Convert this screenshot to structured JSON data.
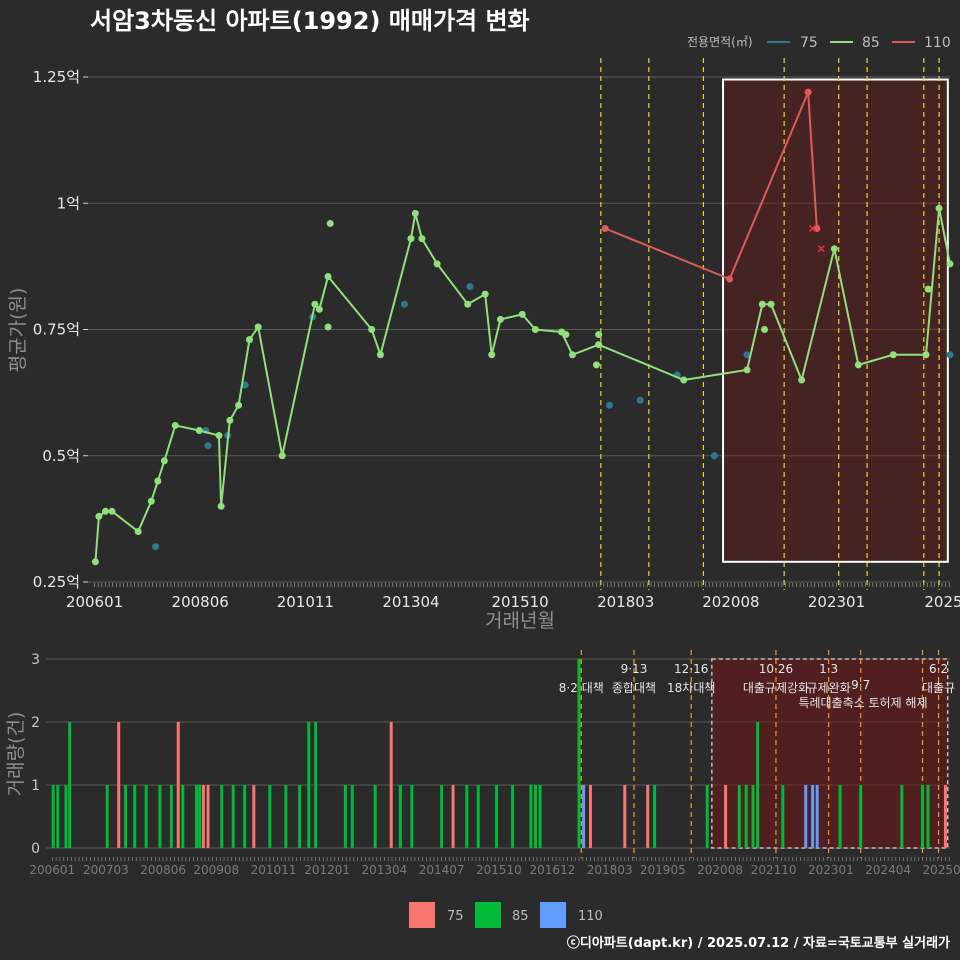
{
  "title": "서암3차동신 아파트(1992) 매매가격 변화",
  "footer": "ⓒ디아파트(dapt.kr) / 2025.07.12 / 자료=국토교통부 실거래가",
  "colors": {
    "s75": "#2a7b8c",
    "s85": "#90e07c",
    "s110": "#e05a5a",
    "b75": "#f8766d",
    "b85": "#00ba38",
    "b110": "#619cff",
    "vline": "#e8d82a",
    "vline2": "#e8a020"
  },
  "chart_data": [
    {
      "type": "line",
      "title": "서암3차동신 아파트(1992) 매매가격 변화",
      "xlabel": "거래년월",
      "ylabel": "평균가(원)",
      "legend_title": "전용면적(㎡)",
      "legend": [
        "75",
        "85",
        "110"
      ],
      "x_ticks": [
        "200601",
        "200806",
        "201011",
        "201304",
        "201510",
        "201803",
        "202008",
        "202301",
        "2025"
      ],
      "y_ticks": [
        "0.25억",
        "0.5억",
        "0.75억",
        "1억",
        "1.25억"
      ],
      "ylim": [
        0.25,
        1.25
      ],
      "xlim": [
        2005.85,
        2025.6
      ],
      "highlight_x": [
        2020.4,
        2025.55
      ],
      "highlight_y": [
        0.29,
        1.245
      ],
      "vlines": [
        2017.6,
        2018.7,
        2019.95,
        2021.8,
        2023.05,
        2023.7,
        2025.0,
        2025.35
      ],
      "series": [
        {
          "name": "75",
          "points": [
            [
              2007.4,
              0.32
            ],
            [
              2008.55,
              0.55
            ],
            [
              2008.6,
              0.52
            ],
            [
              2009.05,
              0.54
            ],
            [
              2009.45,
              0.64
            ],
            [
              2011.0,
              0.775
            ],
            [
              2013.1,
              0.8
            ],
            [
              2014.6,
              0.835
            ],
            [
              2017.8,
              0.6
            ],
            [
              2018.5,
              0.61
            ],
            [
              2019.35,
              0.66
            ],
            [
              2020.2,
              0.5
            ],
            [
              2020.95,
              0.7
            ],
            [
              2025.6,
              0.7
            ]
          ]
        },
        {
          "name": "85",
          "line": [
            [
              2006.02,
              0.29
            ],
            [
              2006.1,
              0.38
            ],
            [
              2006.25,
              0.39
            ],
            [
              2006.4,
              0.39
            ],
            [
              2007.0,
              0.35
            ],
            [
              2007.3,
              0.41
            ],
            [
              2007.45,
              0.45
            ],
            [
              2007.6,
              0.49
            ],
            [
              2007.85,
              0.56
            ],
            [
              2008.4,
              0.55
            ],
            [
              2008.85,
              0.54
            ],
            [
              2008.9,
              0.4
            ],
            [
              2009.1,
              0.57
            ],
            [
              2009.3,
              0.6
            ],
            [
              2009.55,
              0.73
            ],
            [
              2009.75,
              0.755
            ],
            [
              2010.3,
              0.5
            ],
            [
              2011.05,
              0.8
            ],
            [
              2011.15,
              0.79
            ],
            [
              2011.35,
              0.855
            ],
            [
              2012.35,
              0.75
            ],
            [
              2012.55,
              0.7
            ],
            [
              2013.25,
              0.93
            ],
            [
              2013.35,
              0.98
            ],
            [
              2013.5,
              0.93
            ],
            [
              2013.85,
              0.88
            ],
            [
              2014.55,
              0.8
            ],
            [
              2014.95,
              0.82
            ],
            [
              2015.1,
              0.7
            ],
            [
              2015.3,
              0.77
            ],
            [
              2015.8,
              0.78
            ],
            [
              2016.1,
              0.75
            ],
            [
              2016.7,
              0.745
            ],
            [
              2016.95,
              0.7
            ],
            [
              2017.55,
              0.72
            ],
            [
              2019.5,
              0.65
            ],
            [
              2020.95,
              0.67
            ],
            [
              2021.3,
              0.8
            ],
            [
              2021.5,
              0.8
            ],
            [
              2022.2,
              0.65
            ],
            [
              2022.95,
              0.91
            ],
            [
              2023.5,
              0.68
            ],
            [
              2024.3,
              0.7
            ],
            [
              2025.05,
              0.7
            ],
            [
              2025.35,
              0.99
            ],
            [
              2025.6,
              0.88
            ]
          ],
          "extra": [
            [
              2011.4,
              0.96
            ],
            [
              2011.35,
              0.755
            ],
            [
              2016.8,
              0.74
            ],
            [
              2017.55,
              0.74
            ],
            [
              2017.5,
              0.68
            ],
            [
              2021.35,
              0.75
            ],
            [
              2025.1,
              0.83
            ]
          ]
        },
        {
          "name": "110",
          "line": [
            [
              2017.7,
              0.95
            ],
            [
              2020.55,
              0.85
            ],
            [
              2022.35,
              1.22
            ],
            [
              2022.55,
              0.95
            ]
          ],
          "crosses": [
            [
              2022.45,
              0.95
            ],
            [
              2022.65,
              0.91
            ]
          ]
        }
      ]
    },
    {
      "type": "bar",
      "ylabel": "거래량(건)",
      "legend": [
        "75",
        "85",
        "110"
      ],
      "ylim": [
        0,
        3
      ],
      "y_ticks": [
        "0",
        "1",
        "2",
        "3"
      ],
      "x_ticks": [
        "200601",
        "200703",
        "200806",
        "200908",
        "201011",
        "201201",
        "201304",
        "201407",
        "201510",
        "201612",
        "201803",
        "201905",
        "202008",
        "202110",
        "202301",
        "202404",
        "202507"
      ],
      "bars": [
        {
          "x": 2006.02,
          "c": 1,
          "s": "85"
        },
        {
          "x": 2006.12,
          "c": 1,
          "s": "85"
        },
        {
          "x": 2006.3,
          "c": 1,
          "s": "85"
        },
        {
          "x": 2006.38,
          "c": 2,
          "s": "85"
        },
        {
          "x": 2007.2,
          "c": 1,
          "s": "85"
        },
        {
          "x": 2007.45,
          "c": 2,
          "s": "75"
        },
        {
          "x": 2007.6,
          "c": 1,
          "s": "85"
        },
        {
          "x": 2007.8,
          "c": 1,
          "s": "85"
        },
        {
          "x": 2008.05,
          "c": 1,
          "s": "85"
        },
        {
          "x": 2008.35,
          "c": 1,
          "s": "85"
        },
        {
          "x": 2008.6,
          "c": 1,
          "s": "85"
        },
        {
          "x": 2008.75,
          "c": 2,
          "s": "75"
        },
        {
          "x": 2008.85,
          "c": 1,
          "s": "85"
        },
        {
          "x": 2009.15,
          "c": 1,
          "s": "85"
        },
        {
          "x": 2009.22,
          "c": 1,
          "s": "85"
        },
        {
          "x": 2009.3,
          "c": 1,
          "s": "75"
        },
        {
          "x": 2009.4,
          "c": 1,
          "s": "75"
        },
        {
          "x": 2009.7,
          "c": 1,
          "s": "85"
        },
        {
          "x": 2009.95,
          "c": 1,
          "s": "85"
        },
        {
          "x": 2010.2,
          "c": 1,
          "s": "85"
        },
        {
          "x": 2010.4,
          "c": 1,
          "s": "75"
        },
        {
          "x": 2010.75,
          "c": 1,
          "s": "85"
        },
        {
          "x": 2011.1,
          "c": 1,
          "s": "85"
        },
        {
          "x": 2011.4,
          "c": 1,
          "s": "85"
        },
        {
          "x": 2011.6,
          "c": 2,
          "s": "85"
        },
        {
          "x": 2011.75,
          "c": 2,
          "s": "85"
        },
        {
          "x": 2012.4,
          "c": 1,
          "s": "85"
        },
        {
          "x": 2012.55,
          "c": 1,
          "s": "85"
        },
        {
          "x": 2013.05,
          "c": 1,
          "s": "85"
        },
        {
          "x": 2013.4,
          "c": 2,
          "s": "75"
        },
        {
          "x": 2013.6,
          "c": 1,
          "s": "85"
        },
        {
          "x": 2013.85,
          "c": 1,
          "s": "85"
        },
        {
          "x": 2014.5,
          "c": 1,
          "s": "85"
        },
        {
          "x": 2014.75,
          "c": 1,
          "s": "75"
        },
        {
          "x": 2015.05,
          "c": 1,
          "s": "85"
        },
        {
          "x": 2015.3,
          "c": 1,
          "s": "85"
        },
        {
          "x": 2015.7,
          "c": 1,
          "s": "85"
        },
        {
          "x": 2016.05,
          "c": 1,
          "s": "85"
        },
        {
          "x": 2016.45,
          "c": 1,
          "s": "85"
        },
        {
          "x": 2016.55,
          "c": 1,
          "s": "85"
        },
        {
          "x": 2016.65,
          "c": 1,
          "s": "85"
        },
        {
          "x": 2017.5,
          "c": 3,
          "s": "85"
        },
        {
          "x": 2017.6,
          "c": 1,
          "s": "110"
        },
        {
          "x": 2017.75,
          "c": 1,
          "s": "75"
        },
        {
          "x": 2018.5,
          "c": 1,
          "s": "75"
        },
        {
          "x": 2019.0,
          "c": 1,
          "s": "75"
        },
        {
          "x": 2019.15,
          "c": 1,
          "s": "85"
        },
        {
          "x": 2020.3,
          "c": 1,
          "s": "85"
        },
        {
          "x": 2020.7,
          "c": 1,
          "s": "75"
        },
        {
          "x": 2021.0,
          "c": 1,
          "s": "85"
        },
        {
          "x": 2021.15,
          "c": 1,
          "s": "85"
        },
        {
          "x": 2021.3,
          "c": 1,
          "s": "85"
        },
        {
          "x": 2021.4,
          "c": 2,
          "s": "85"
        },
        {
          "x": 2021.95,
          "c": 1,
          "s": "85"
        },
        {
          "x": 2022.45,
          "c": 1,
          "s": "110"
        },
        {
          "x": 2022.6,
          "c": 1,
          "s": "110"
        },
        {
          "x": 2022.7,
          "c": 1,
          "s": "110"
        },
        {
          "x": 2023.2,
          "c": 1,
          "s": "85"
        },
        {
          "x": 2023.65,
          "c": 1,
          "s": "85"
        },
        {
          "x": 2024.55,
          "c": 1,
          "s": "85"
        },
        {
          "x": 2025.0,
          "c": 1,
          "s": "85"
        },
        {
          "x": 2025.12,
          "c": 1,
          "s": "85"
        },
        {
          "x": 2025.5,
          "c": 1,
          "s": "75"
        }
      ],
      "annotations": [
        {
          "x": 2017.55,
          "top": "",
          "bottom": "8·2 대책"
        },
        {
          "x": 2018.7,
          "top": "9·13",
          "bottom": "종합대책"
        },
        {
          "x": 2019.95,
          "top": "12·16",
          "bottom": "18차대책"
        },
        {
          "x": 2021.8,
          "top": "10·26",
          "bottom": "대출규제강화"
        },
        {
          "x": 2022.95,
          "top": "1·3",
          "bottom": "규제완화"
        },
        {
          "x": 2023.65,
          "top": "",
          "bottom": "9·7"
        },
        {
          "x": 2023.7,
          "top": "",
          "bottom": "특례대출축소 토허제 해제"
        },
        {
          "x": 2025.35,
          "top": "6·2",
          "bottom": "대출규"
        }
      ]
    }
  ]
}
